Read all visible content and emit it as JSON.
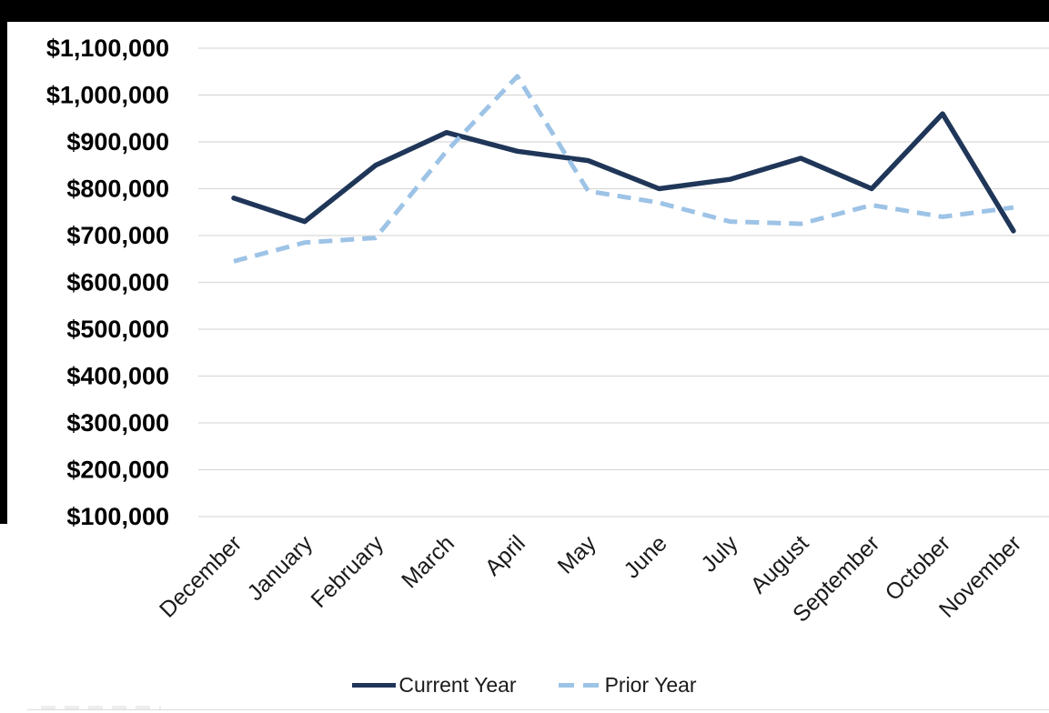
{
  "chart_data": {
    "type": "line",
    "categories": [
      "December",
      "January",
      "February",
      "March",
      "April",
      "May",
      "June",
      "July",
      "August",
      "September",
      "October",
      "November"
    ],
    "series": [
      {
        "name": "Current Year",
        "style": "solid",
        "color": "#1f3659",
        "values": [
          780000,
          730000,
          850000,
          920000,
          880000,
          860000,
          800000,
          820000,
          865000,
          800000,
          960000,
          710000
        ]
      },
      {
        "name": "Prior Year",
        "style": "dashed",
        "color": "#9dc3e6",
        "values": [
          645000,
          685000,
          695000,
          880000,
          1040000,
          795000,
          770000,
          730000,
          725000,
          765000,
          740000,
          760000
        ]
      }
    ],
    "title": "",
    "xlabel": "",
    "ylabel": "",
    "y_axis": {
      "min": 100000,
      "max": 1100000,
      "step": 100000,
      "tick_labels": [
        "$1,100,000",
        "$1,000,000",
        "$900,000",
        "$800,000",
        "$700,000",
        "$600,000",
        "$500,000",
        "$400,000",
        "$300,000",
        "$200,000",
        "$100,000"
      ],
      "format": "$#,##0"
    },
    "x_axis": {
      "label_rotation": -45
    },
    "gridlines": {
      "horizontal": true,
      "color": "#d9d9d9"
    },
    "legend": {
      "position": "bottom",
      "entries": [
        "Current Year",
        "Prior Year"
      ]
    }
  },
  "page": {
    "background_color": "#ffffff",
    "top_bar_color": "#000000"
  }
}
